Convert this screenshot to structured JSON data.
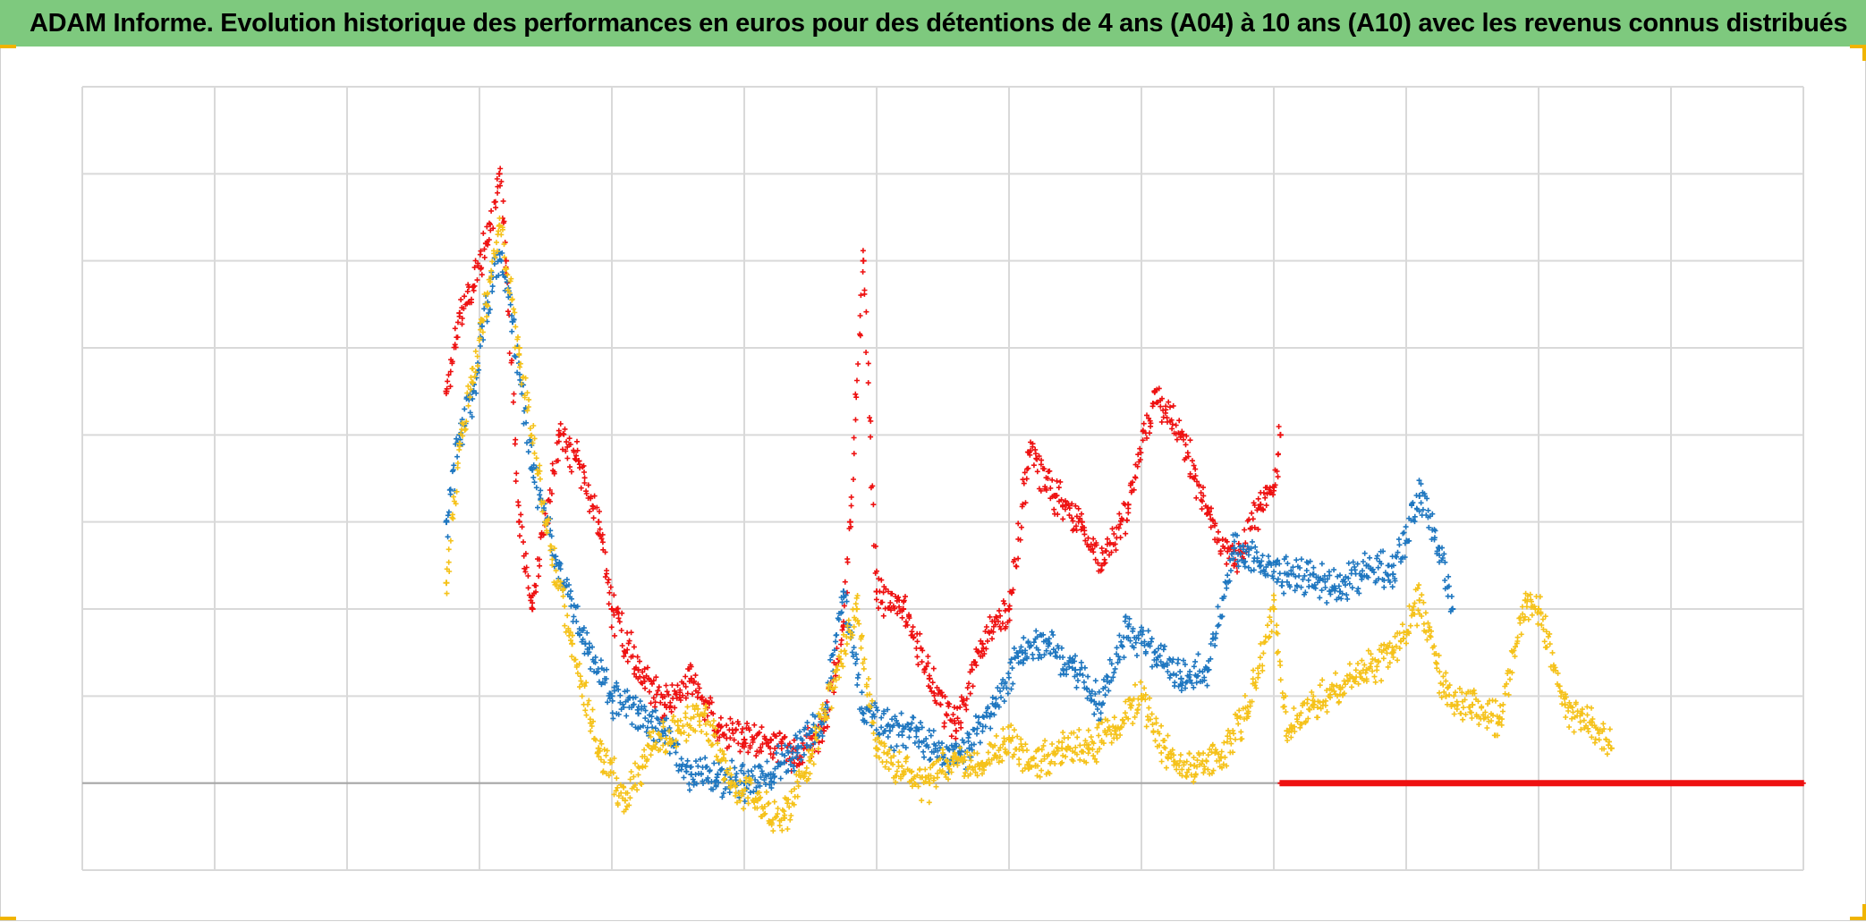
{
  "title": "ADAM Informe. Evolution historique des performances en euros pour des détentions de 4 ans (A04) à 10 ans (A10) avec les revenus connus distribués",
  "colors": {
    "title_bar": "#7ec97e",
    "grid": "#d9d9d9",
    "zero_line": "#a6a6a6",
    "red_series": "#ee1111",
    "blue_series": "#1f77c0",
    "yellow_series": "#f5c21a",
    "corner_marks": "#f0b400"
  },
  "chart_data": {
    "type": "scatter",
    "marker": "plus",
    "title": "ADAM Informe. Evolution historique des performances en euros pour des détentions de 4 ans (A04) à 10 ans (A10) avec les revenus connus distribués",
    "xlabel": "",
    "ylabel": "",
    "xlim": [
      0,
      13
    ],
    "ylim": [
      -1,
      8
    ],
    "x_gridlines": 13,
    "y_gridlines": 9,
    "grid": true,
    "tick_labels_shown": false,
    "legend": "none",
    "series": [
      {
        "color": "#ee1111",
        "points": [
          [
            2.75,
            4.5
          ],
          [
            2.85,
            5.4
          ],
          [
            2.95,
            5.7
          ],
          [
            3.05,
            6.2
          ],
          [
            3.15,
            7.0
          ],
          [
            3.2,
            6.0
          ],
          [
            3.3,
            3.0
          ],
          [
            3.4,
            2.0
          ],
          [
            3.5,
            3.0
          ],
          [
            3.6,
            4.0
          ],
          [
            3.75,
            3.7
          ],
          [
            3.9,
            3.0
          ],
          [
            4.0,
            2.0
          ],
          [
            4.2,
            1.3
          ],
          [
            4.4,
            0.9
          ],
          [
            4.6,
            1.2
          ],
          [
            4.8,
            0.6
          ],
          [
            5.0,
            0.5
          ],
          [
            5.2,
            0.5
          ],
          [
            5.4,
            0.3
          ],
          [
            5.6,
            0.6
          ],
          [
            5.75,
            1.8
          ],
          [
            5.8,
            3.0
          ],
          [
            5.9,
            6.0
          ],
          [
            6.0,
            2.2
          ],
          [
            6.2,
            2.0
          ],
          [
            6.4,
            1.2
          ],
          [
            6.6,
            0.6
          ],
          [
            6.8,
            1.6
          ],
          [
            7.0,
            2.0
          ],
          [
            7.15,
            3.8
          ],
          [
            7.35,
            3.3
          ],
          [
            7.55,
            3.0
          ],
          [
            7.7,
            2.5
          ],
          [
            7.9,
            3.2
          ],
          [
            8.1,
            4.5
          ],
          [
            8.3,
            4.0
          ],
          [
            8.5,
            3.1
          ],
          [
            8.7,
            2.5
          ],
          [
            8.9,
            3.2
          ],
          [
            9.0,
            3.4
          ],
          [
            9.05,
            4.0
          ]
        ],
        "flat_segment": {
          "x": [
            9.05,
            13
          ],
          "y": 0
        }
      },
      {
        "color": "#1f77c0",
        "points": [
          [
            2.75,
            3.0
          ],
          [
            2.85,
            4.0
          ],
          [
            2.95,
            4.5
          ],
          [
            3.05,
            5.5
          ],
          [
            3.15,
            6.1
          ],
          [
            3.25,
            5.3
          ],
          [
            3.4,
            3.6
          ],
          [
            3.6,
            2.5
          ],
          [
            3.8,
            1.6
          ],
          [
            4.0,
            1.0
          ],
          [
            4.2,
            0.8
          ],
          [
            4.4,
            0.6
          ],
          [
            4.6,
            0.1
          ],
          [
            4.8,
            0.1
          ],
          [
            5.0,
            0.0
          ],
          [
            5.2,
            0.1
          ],
          [
            5.4,
            0.4
          ],
          [
            5.6,
            0.7
          ],
          [
            5.75,
            2.2
          ],
          [
            5.9,
            0.8
          ],
          [
            6.1,
            0.6
          ],
          [
            6.3,
            0.6
          ],
          [
            6.5,
            0.3
          ],
          [
            6.7,
            0.4
          ],
          [
            6.9,
            0.9
          ],
          [
            7.1,
            1.5
          ],
          [
            7.3,
            1.6
          ],
          [
            7.5,
            1.3
          ],
          [
            7.7,
            0.9
          ],
          [
            7.9,
            1.8
          ],
          [
            8.1,
            1.5
          ],
          [
            8.3,
            1.2
          ],
          [
            8.5,
            1.3
          ],
          [
            8.7,
            2.7
          ],
          [
            8.9,
            2.5
          ],
          [
            9.1,
            2.4
          ],
          [
            9.3,
            2.4
          ],
          [
            9.5,
            2.2
          ],
          [
            9.7,
            2.5
          ],
          [
            9.9,
            2.4
          ],
          [
            10.1,
            3.3
          ],
          [
            10.25,
            2.7
          ],
          [
            10.35,
            2.0
          ]
        ]
      },
      {
        "color": "#f5c21a",
        "points": [
          [
            2.75,
            2.3
          ],
          [
            2.85,
            3.9
          ],
          [
            2.95,
            4.6
          ],
          [
            3.05,
            5.5
          ],
          [
            3.15,
            6.4
          ],
          [
            3.3,
            5.0
          ],
          [
            3.5,
            3.0
          ],
          [
            3.7,
            1.6
          ],
          [
            3.9,
            0.4
          ],
          [
            4.1,
            -0.2
          ],
          [
            4.3,
            0.4
          ],
          [
            4.5,
            0.6
          ],
          [
            4.7,
            0.8
          ],
          [
            4.9,
            0.0
          ],
          [
            5.1,
            -0.2
          ],
          [
            5.3,
            -0.4
          ],
          [
            5.5,
            0.3
          ],
          [
            5.7,
            1.3
          ],
          [
            5.85,
            2.0
          ],
          [
            6.0,
            0.4
          ],
          [
            6.2,
            0.1
          ],
          [
            6.4,
            0.0
          ],
          [
            6.6,
            0.3
          ],
          [
            6.8,
            0.2
          ],
          [
            7.0,
            0.5
          ],
          [
            7.2,
            0.2
          ],
          [
            7.4,
            0.4
          ],
          [
            7.6,
            0.4
          ],
          [
            7.8,
            0.6
          ],
          [
            8.0,
            1.0
          ],
          [
            8.2,
            0.3
          ],
          [
            8.4,
            0.2
          ],
          [
            8.6,
            0.3
          ],
          [
            8.8,
            0.8
          ],
          [
            9.0,
            2.0
          ],
          [
            9.1,
            0.6
          ],
          [
            9.3,
            0.9
          ],
          [
            9.5,
            1.1
          ],
          [
            9.7,
            1.3
          ],
          [
            9.9,
            1.5
          ],
          [
            10.1,
            2.1
          ],
          [
            10.3,
            1.0
          ],
          [
            10.5,
            0.9
          ],
          [
            10.7,
            0.7
          ],
          [
            10.9,
            2.1
          ],
          [
            11.0,
            2.0
          ],
          [
            11.2,
            0.9
          ],
          [
            11.4,
            0.7
          ],
          [
            11.55,
            0.4
          ]
        ]
      }
    ]
  }
}
